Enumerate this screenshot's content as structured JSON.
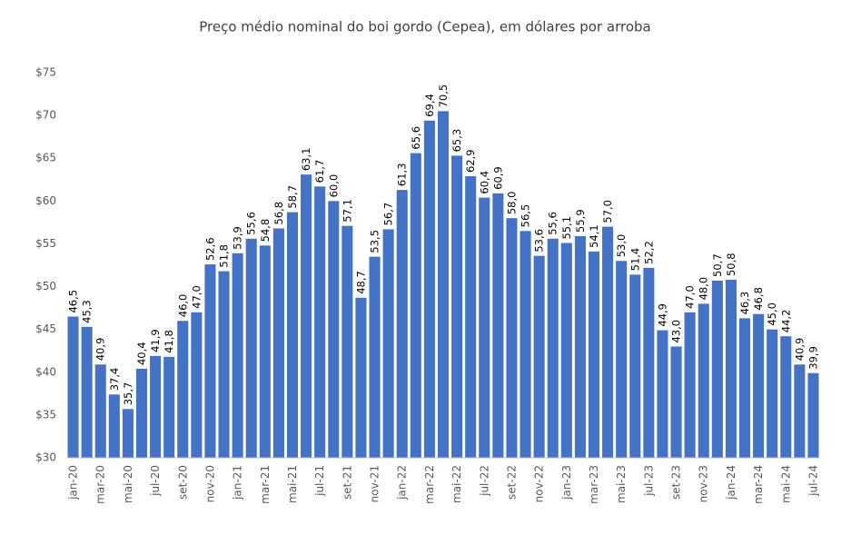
{
  "chart_data": {
    "type": "bar",
    "title": "Preço médio nominal do boi gordo (Cepea), em dólares por arroba",
    "categories": [
      "jan-20",
      null,
      "mar-20",
      null,
      "mai-20",
      null,
      "jul-20",
      null,
      "set-20",
      null,
      "nov-20",
      null,
      "jan-21",
      null,
      "mar-21",
      null,
      "mai-21",
      null,
      "jul-21",
      null,
      "set-21",
      null,
      "nov-21",
      null,
      "jan-22",
      null,
      "mar-22",
      null,
      "mai-22",
      null,
      "jul-22",
      null,
      "set-22",
      null,
      "nov-22",
      null,
      "jan-23",
      null,
      "mar-23",
      null,
      "mai-23",
      null,
      "jul-23",
      null,
      "set-23",
      null,
      "nov-23",
      null,
      "jan-24",
      null,
      "mar-24",
      null,
      "mai-24",
      null,
      "jul-24"
    ],
    "values": [
      46.5,
      45.3,
      40.9,
      37.4,
      35.7,
      40.4,
      41.9,
      41.8,
      46.0,
      47.0,
      52.6,
      51.8,
      53.9,
      55.6,
      54.8,
      56.8,
      58.7,
      63.1,
      61.7,
      60.0,
      57.1,
      48.7,
      53.5,
      56.7,
      61.3,
      65.6,
      69.4,
      70.5,
      65.3,
      62.9,
      60.4,
      60.9,
      58.0,
      56.5,
      53.6,
      55.6,
      55.1,
      55.9,
      54.1,
      57.0,
      53.0,
      51.4,
      52.2,
      44.9,
      43.0,
      47.0,
      48.0,
      50.7,
      50.8,
      46.3,
      46.8,
      45.0,
      44.2,
      40.9,
      39.9
    ],
    "value_labels": [
      "46,5",
      "45,3",
      "40,9",
      "37,4",
      "35,7",
      "40,4",
      "41,9",
      "41,8",
      "46,0",
      "47,0",
      "52,6",
      "51,8",
      "53,9",
      "55,6",
      "54,8",
      "56,8",
      "58,7",
      "63,1",
      "61,7",
      "60,0",
      "57,1",
      "48,7",
      "53,5",
      "56,7",
      "61,3",
      "65,6",
      "69,4",
      "70,5",
      "65,3",
      "62,9",
      "60,4",
      "60,9",
      "58,0",
      "56,5",
      "53,6",
      "55,6",
      "55,1",
      "55,9",
      "54,1",
      "57,0",
      "53,0",
      "51,4",
      "52,2",
      "44,9",
      "43,0",
      "47,0",
      "48,0",
      "50,7",
      "50,8",
      "46,3",
      "46,8",
      "45,0",
      "44,2",
      "40,9",
      "39,9"
    ],
    "color": "#4472c4",
    "ylim": [
      30,
      75
    ],
    "yticks": [
      {
        "value": 30,
        "label": "$30"
      },
      {
        "value": 35,
        "label": "$35"
      },
      {
        "value": 40,
        "label": "$40"
      },
      {
        "value": 45,
        "label": "$45"
      },
      {
        "value": 50,
        "label": "$50"
      },
      {
        "value": 55,
        "label": "$55"
      },
      {
        "value": 60,
        "label": "$60"
      },
      {
        "value": 65,
        "label": "$65"
      },
      {
        "value": 70,
        "label": "$70"
      },
      {
        "value": 75,
        "label": "$75"
      }
    ],
    "grid": false
  }
}
